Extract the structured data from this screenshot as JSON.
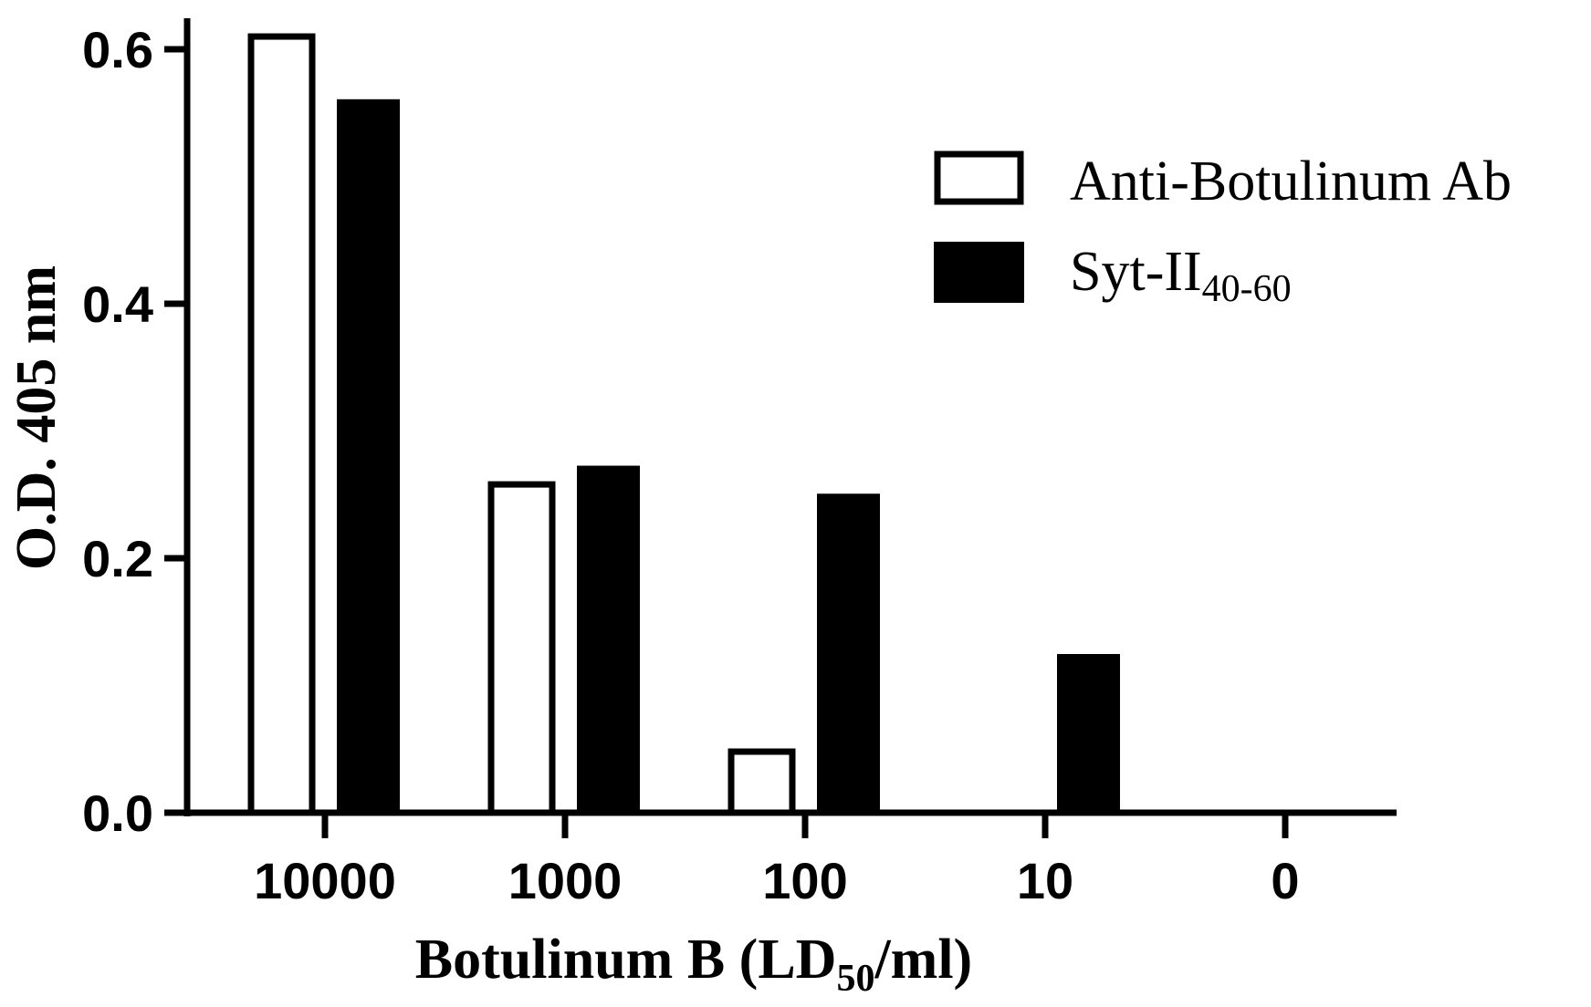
{
  "chart_data": {
    "type": "bar",
    "categories": [
      "10000",
      "1000",
      "100",
      "10",
      "0"
    ],
    "series": [
      {
        "name": "Anti-Botulinum Ab",
        "name_sub": "",
        "values": [
          0.61,
          0.258,
          0.048,
          0.0,
          0.0
        ],
        "fill": "#ffffff",
        "stroke": "#000000"
      },
      {
        "name": "Syt-II",
        "name_sub": "40-60",
        "values": [
          0.56,
          0.272,
          0.25,
          0.124,
          0.0
        ],
        "fill": "#000000",
        "stroke": "#000000"
      }
    ],
    "xlabel": {
      "main": "Botulinum B (LD",
      "sub": "50",
      "tail": "/ml)"
    },
    "ylabel": "O.D. 405 nm",
    "ylim": [
      0,
      0.6
    ],
    "yticks": [
      "0.0",
      "0.2",
      "0.4",
      "0.6"
    ],
    "ytick_values": [
      0.0,
      0.2,
      0.4,
      0.6
    ],
    "grid": false,
    "legend_position": "top-right"
  }
}
